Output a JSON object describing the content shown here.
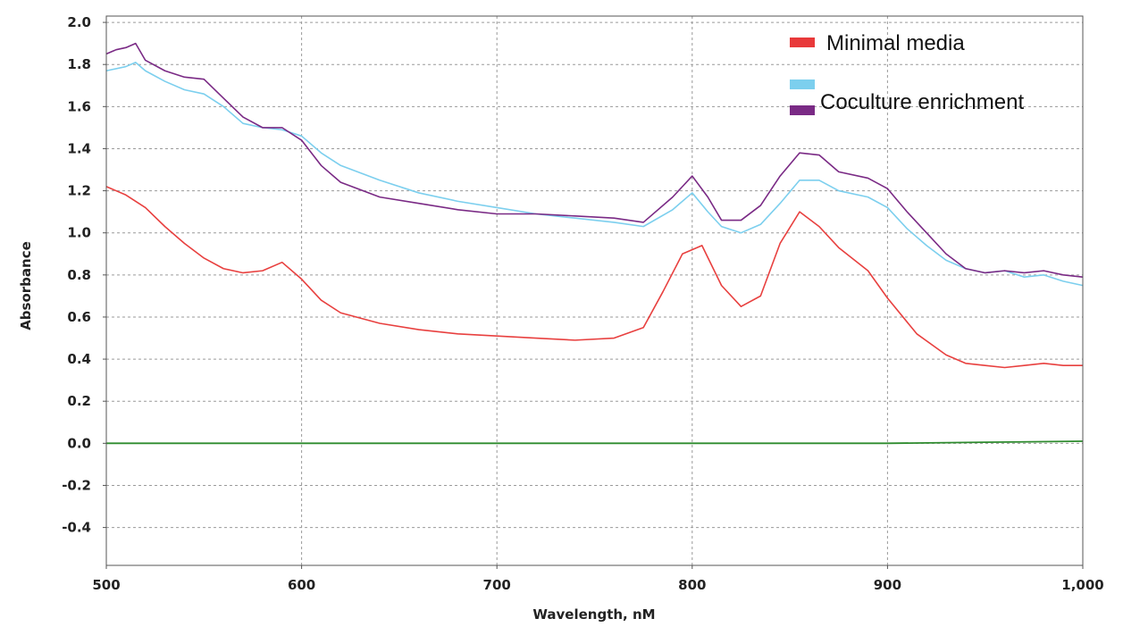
{
  "chart_data": {
    "type": "line",
    "title": "",
    "xlabel": "Wavelength, nM",
    "ylabel": "Absorbance",
    "xlim": [
      500,
      1000
    ],
    "ylim": [
      -0.58,
      2.03
    ],
    "x_ticks": [
      500,
      600,
      700,
      800,
      900,
      1000
    ],
    "x_tick_labels": [
      "500",
      "600",
      "700",
      "800",
      "900",
      "1,000"
    ],
    "y_ticks": [
      2.0,
      1.8,
      1.6,
      1.4,
      1.2,
      1.0,
      0.8,
      0.6,
      0.4,
      0.2,
      0.0,
      -0.2,
      -0.4
    ],
    "y_tick_labels": [
      "2.0",
      "1.8",
      "1.6",
      "1.4",
      "1.2",
      "1.0",
      "0.8",
      "0.6",
      "0.4",
      "0.2",
      "0.0",
      "-0.2",
      "-0.4"
    ],
    "grid": true,
    "legend_position": "top-right",
    "legend": [
      {
        "label": "Minimal media",
        "swatches": [
          "#e8393a"
        ]
      },
      {
        "label": "Coculture enrichment",
        "swatches": [
          "#7ccfee",
          "#7a2a85"
        ]
      }
    ],
    "series": [
      {
        "color": "#e8403f",
        "x": [
          500,
          510,
          520,
          530,
          540,
          550,
          560,
          570,
          580,
          590,
          600,
          610,
          620,
          640,
          660,
          680,
          700,
          720,
          740,
          760,
          775,
          785,
          795,
          805,
          815,
          825,
          835,
          845,
          855,
          865,
          875,
          890,
          900,
          915,
          930,
          940,
          950,
          960,
          970,
          980,
          990,
          1000
        ],
        "y": [
          1.22,
          1.18,
          1.12,
          1.03,
          0.95,
          0.88,
          0.83,
          0.81,
          0.82,
          0.86,
          0.78,
          0.68,
          0.62,
          0.57,
          0.54,
          0.52,
          0.51,
          0.5,
          0.49,
          0.5,
          0.55,
          0.72,
          0.9,
          0.94,
          0.75,
          0.65,
          0.7,
          0.95,
          1.1,
          1.03,
          0.93,
          0.82,
          0.69,
          0.52,
          0.42,
          0.38,
          0.37,
          0.36,
          0.37,
          0.38,
          0.37,
          0.37
        ]
      },
      {
        "color": "#7ccfee",
        "x": [
          500,
          510,
          515,
          520,
          530,
          540,
          550,
          560,
          570,
          580,
          590,
          600,
          610,
          620,
          640,
          660,
          680,
          700,
          720,
          740,
          760,
          775,
          790,
          800,
          808,
          815,
          825,
          835,
          845,
          855,
          865,
          875,
          890,
          900,
          910,
          920,
          930,
          940,
          950,
          960,
          970,
          980,
          990,
          1000
        ],
        "y": [
          1.77,
          1.79,
          1.81,
          1.77,
          1.72,
          1.68,
          1.66,
          1.6,
          1.52,
          1.5,
          1.49,
          1.46,
          1.38,
          1.32,
          1.25,
          1.19,
          1.15,
          1.12,
          1.09,
          1.07,
          1.05,
          1.03,
          1.11,
          1.19,
          1.1,
          1.03,
          1.0,
          1.04,
          1.14,
          1.25,
          1.25,
          1.2,
          1.17,
          1.12,
          1.02,
          0.94,
          0.87,
          0.83,
          0.81,
          0.82,
          0.79,
          0.8,
          0.77,
          0.75
        ]
      },
      {
        "color": "#7a2a85",
        "x": [
          500,
          505,
          510,
          515,
          520,
          530,
          540,
          550,
          560,
          570,
          580,
          590,
          600,
          610,
          620,
          640,
          660,
          680,
          700,
          720,
          740,
          760,
          775,
          790,
          800,
          808,
          815,
          825,
          835,
          845,
          855,
          865,
          875,
          890,
          900,
          910,
          920,
          930,
          940,
          950,
          960,
          970,
          980,
          990,
          1000
        ],
        "y": [
          1.85,
          1.87,
          1.88,
          1.9,
          1.82,
          1.77,
          1.74,
          1.73,
          1.64,
          1.55,
          1.5,
          1.5,
          1.44,
          1.32,
          1.24,
          1.17,
          1.14,
          1.11,
          1.09,
          1.09,
          1.08,
          1.07,
          1.05,
          1.17,
          1.27,
          1.17,
          1.06,
          1.06,
          1.13,
          1.27,
          1.38,
          1.37,
          1.29,
          1.26,
          1.21,
          1.1,
          1.0,
          0.9,
          0.83,
          0.81,
          0.82,
          0.81,
          0.82,
          0.8,
          0.79
        ]
      },
      {
        "color": "#2e8b2e",
        "x": [
          500,
          600,
          700,
          800,
          900,
          950,
          1000
        ],
        "y": [
          0.0,
          0.0,
          0.0,
          0.0,
          0.0,
          0.005,
          0.01
        ]
      }
    ]
  }
}
